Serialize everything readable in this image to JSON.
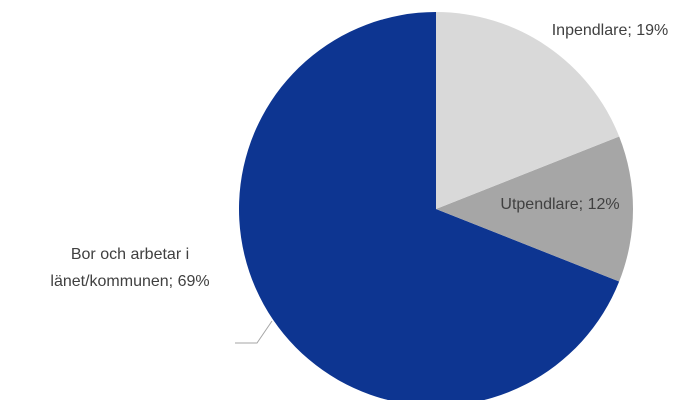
{
  "chart_data": {
    "type": "pie",
    "values": [
      19,
      12,
      69
    ],
    "value_labels": [
      "Inpendlare; 19%",
      "Utpendlare; 12%",
      "Bor och arbetar i länet/kommunen; 69%"
    ],
    "colors": [
      "#d9d9d9",
      "#a6a6a6",
      "#0d3591"
    ]
  }
}
